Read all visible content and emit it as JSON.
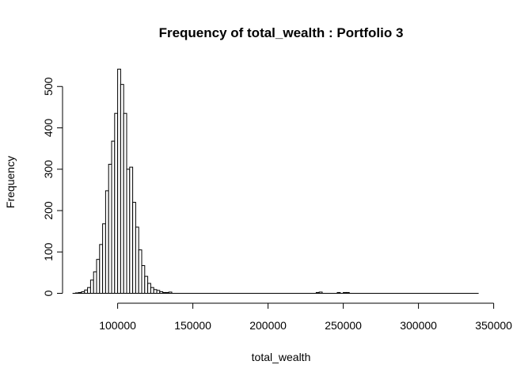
{
  "chart_data": {
    "type": "bar",
    "title": "Frequency of total_wealth : Portfolio 3",
    "xlabel": "total_wealth",
    "ylabel": "Frequency",
    "xlim": [
      70000,
      350000
    ],
    "ylim": [
      0,
      540
    ],
    "x_ticks": [
      100000,
      150000,
      200000,
      250000,
      300000,
      350000
    ],
    "x_tick_labels": [
      "100000",
      "150000",
      "200000",
      "250000",
      "300000",
      "350000"
    ],
    "y_ticks": [
      0,
      100,
      200,
      300,
      400,
      500
    ],
    "y_tick_labels": [
      "0",
      "100",
      "200",
      "300",
      "400",
      "500"
    ],
    "bin_width": 2000,
    "x_range": [
      70000,
      340000
    ],
    "bins": [
      {
        "x0": 72000,
        "x1": 74000,
        "count": 1
      },
      {
        "x0": 74000,
        "x1": 76000,
        "count": 2
      },
      {
        "x0": 76000,
        "x1": 78000,
        "count": 4
      },
      {
        "x0": 78000,
        "x1": 80000,
        "count": 8
      },
      {
        "x0": 80000,
        "x1": 82000,
        "count": 14
      },
      {
        "x0": 82000,
        "x1": 84000,
        "count": 32
      },
      {
        "x0": 84000,
        "x1": 86000,
        "count": 52
      },
      {
        "x0": 86000,
        "x1": 88000,
        "count": 82
      },
      {
        "x0": 88000,
        "x1": 90000,
        "count": 118
      },
      {
        "x0": 90000,
        "x1": 92000,
        "count": 168
      },
      {
        "x0": 92000,
        "x1": 94000,
        "count": 248
      },
      {
        "x0": 94000,
        "x1": 96000,
        "count": 312
      },
      {
        "x0": 96000,
        "x1": 98000,
        "count": 368
      },
      {
        "x0": 98000,
        "x1": 100000,
        "count": 435
      },
      {
        "x0": 100000,
        "x1": 102000,
        "count": 542
      },
      {
        "x0": 102000,
        "x1": 104000,
        "count": 505
      },
      {
        "x0": 104000,
        "x1": 106000,
        "count": 435
      },
      {
        "x0": 106000,
        "x1": 108000,
        "count": 300
      },
      {
        "x0": 108000,
        "x1": 110000,
        "count": 305
      },
      {
        "x0": 110000,
        "x1": 112000,
        "count": 220
      },
      {
        "x0": 112000,
        "x1": 114000,
        "count": 160
      },
      {
        "x0": 114000,
        "x1": 116000,
        "count": 105
      },
      {
        "x0": 116000,
        "x1": 118000,
        "count": 67
      },
      {
        "x0": 118000,
        "x1": 120000,
        "count": 41
      },
      {
        "x0": 120000,
        "x1": 122000,
        "count": 24
      },
      {
        "x0": 122000,
        "x1": 124000,
        "count": 14
      },
      {
        "x0": 124000,
        "x1": 126000,
        "count": 9
      },
      {
        "x0": 126000,
        "x1": 128000,
        "count": 7
      },
      {
        "x0": 128000,
        "x1": 130000,
        "count": 4
      },
      {
        "x0": 130000,
        "x1": 132000,
        "count": 2
      },
      {
        "x0": 132000,
        "x1": 134000,
        "count": 2
      },
      {
        "x0": 134000,
        "x1": 136000,
        "count": 3
      },
      {
        "x0": 232000,
        "x1": 234000,
        "count": 2
      },
      {
        "x0": 234000,
        "x1": 236000,
        "count": 3
      },
      {
        "x0": 246000,
        "x1": 248000,
        "count": 2
      },
      {
        "x0": 250000,
        "x1": 252000,
        "count": 2
      },
      {
        "x0": 252000,
        "x1": 254000,
        "count": 2
      }
    ],
    "fill": "#ffffff",
    "stroke": "#000000",
    "grid": false
  }
}
